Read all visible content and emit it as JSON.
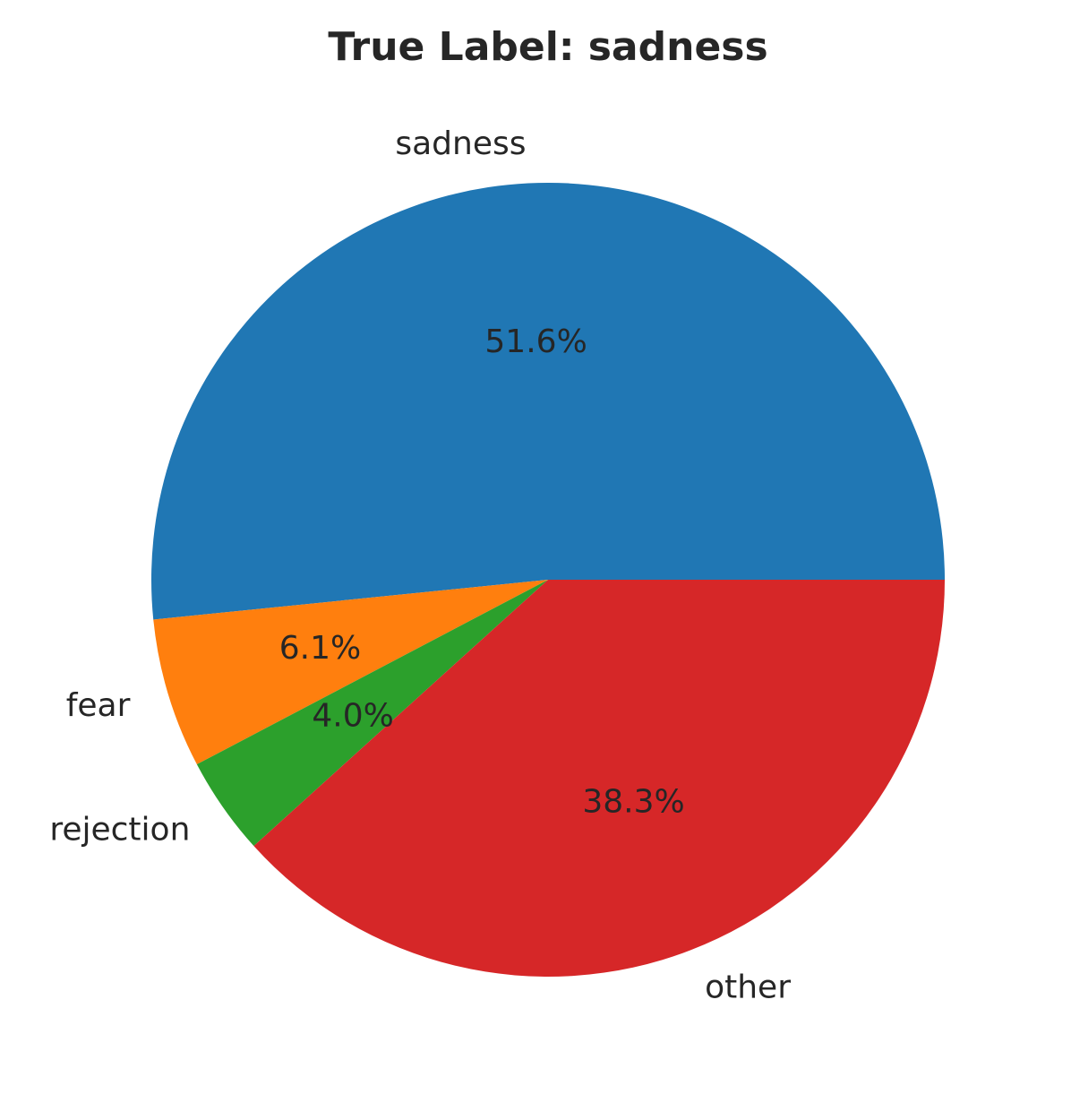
{
  "chart_data": {
    "type": "pie",
    "title": "True Label: sadness",
    "slices": [
      {
        "label": "sadness",
        "value": 51.6,
        "pct_label": "51.6%",
        "color": "#2077b4"
      },
      {
        "label": "fear",
        "value": 6.1,
        "pct_label": "6.1%",
        "color": "#ff7f0e"
      },
      {
        "label": "rejection",
        "value": 4.0,
        "pct_label": "4.0%",
        "color": "#2ca02c"
      },
      {
        "label": "other",
        "value": 38.3,
        "pct_label": "38.3%",
        "color": "#d62728"
      }
    ],
    "start_angle_deg": 0,
    "direction": "counterclockwise",
    "legend": "none"
  }
}
